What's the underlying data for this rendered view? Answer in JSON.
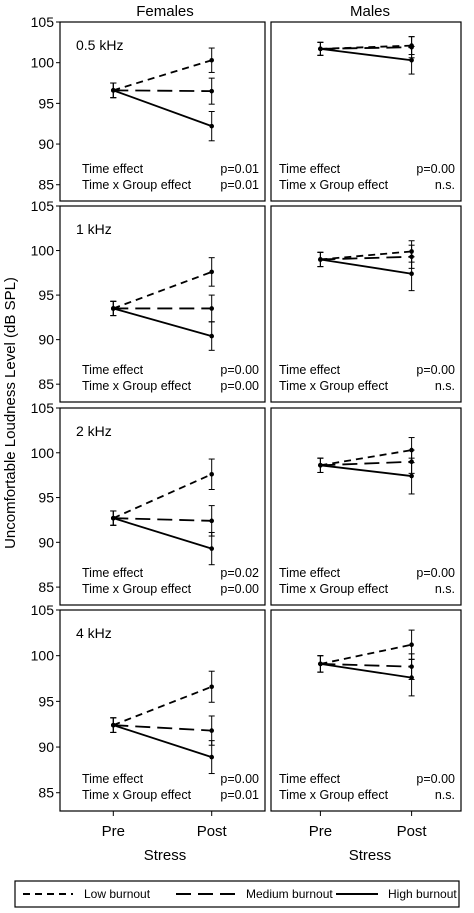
{
  "figure": {
    "ylabel": "Uncomfortable Loudness Level (dB SPL)",
    "xlabel": "Stress",
    "column_titles": [
      "Females",
      "Males"
    ],
    "yticks": [
      85,
      90,
      95,
      100,
      105
    ],
    "xticks": [
      "Pre",
      "Post"
    ],
    "legend": [
      "Low burnout",
      "Medium burnout",
      "High burnout"
    ]
  },
  "chart_data": [
    {
      "type": "line",
      "title": "Females",
      "frequency": "0.5 kHz",
      "categories": [
        "Pre",
        "Post"
      ],
      "ylim": [
        83,
        105
      ],
      "series": [
        {
          "name": "Low burnout",
          "values": [
            96.6,
            100.3
          ],
          "err": [
            0.9,
            1.5
          ]
        },
        {
          "name": "Medium burnout",
          "values": [
            96.6,
            96.5
          ],
          "err": [
            0.9,
            1.6
          ]
        },
        {
          "name": "High burnout",
          "values": [
            96.6,
            92.2
          ],
          "err": [
            0.9,
            1.8
          ]
        }
      ],
      "annotations": [
        {
          "label": "Time effect",
          "value": "p=0.01"
        },
        {
          "label": "Time x Group effect",
          "value": "p=0.01"
        }
      ]
    },
    {
      "type": "line",
      "title": "Males",
      "frequency": "",
      "categories": [
        "Pre",
        "Post"
      ],
      "ylim": [
        83,
        105
      ],
      "series": [
        {
          "name": "Low burnout",
          "values": [
            101.7,
            102.1
          ],
          "err": [
            0.8,
            1.1
          ]
        },
        {
          "name": "Medium burnout",
          "values": [
            101.7,
            101.9
          ],
          "err": [
            0.8,
            1.3
          ]
        },
        {
          "name": "High burnout",
          "values": [
            101.7,
            100.3
          ],
          "err": [
            0.8,
            1.7
          ]
        }
      ],
      "annotations": [
        {
          "label": "Time effect",
          "value": "p=0.00"
        },
        {
          "label": "Time x Group effect",
          "value": "n.s."
        }
      ]
    },
    {
      "type": "line",
      "title": "Females",
      "frequency": "1 kHz",
      "categories": [
        "Pre",
        "Post"
      ],
      "ylim": [
        83,
        105
      ],
      "series": [
        {
          "name": "Low burnout",
          "values": [
            93.5,
            97.6
          ],
          "err": [
            0.8,
            1.6
          ]
        },
        {
          "name": "Medium burnout",
          "values": [
            93.5,
            93.5
          ],
          "err": [
            0.8,
            1.5
          ]
        },
        {
          "name": "High burnout",
          "values": [
            93.5,
            90.4
          ],
          "err": [
            0.8,
            1.6
          ]
        }
      ],
      "annotations": [
        {
          "label": "Time effect",
          "value": "p=0.00"
        },
        {
          "label": "Time x Group effect",
          "value": "p=0.00"
        }
      ]
    },
    {
      "type": "line",
      "title": "Males",
      "frequency": "",
      "categories": [
        "Pre",
        "Post"
      ],
      "ylim": [
        83,
        105
      ],
      "series": [
        {
          "name": "Low burnout",
          "values": [
            99.0,
            99.9
          ],
          "err": [
            0.8,
            1.2
          ]
        },
        {
          "name": "Medium burnout",
          "values": [
            99.0,
            99.3
          ],
          "err": [
            0.8,
            1.3
          ]
        },
        {
          "name": "High burnout",
          "values": [
            99.0,
            97.4
          ],
          "err": [
            0.8,
            1.9
          ]
        }
      ],
      "annotations": [
        {
          "label": "Time effect",
          "value": "p=0.00"
        },
        {
          "label": "Time x Group effect",
          "value": "n.s."
        }
      ]
    },
    {
      "type": "line",
      "title": "Females",
      "frequency": "2 kHz",
      "categories": [
        "Pre",
        "Post"
      ],
      "ylim": [
        83,
        105
      ],
      "series": [
        {
          "name": "Low burnout",
          "values": [
            92.7,
            97.6
          ],
          "err": [
            0.8,
            1.7
          ]
        },
        {
          "name": "Medium burnout",
          "values": [
            92.7,
            92.4
          ],
          "err": [
            0.8,
            1.7
          ]
        },
        {
          "name": "High burnout",
          "values": [
            92.7,
            89.3
          ],
          "err": [
            0.8,
            1.8
          ]
        }
      ],
      "annotations": [
        {
          "label": "Time effect",
          "value": "p=0.02"
        },
        {
          "label": "Time x Group effect",
          "value": "p=0.00"
        }
      ]
    },
    {
      "type": "line",
      "title": "Males",
      "frequency": "",
      "categories": [
        "Pre",
        "Post"
      ],
      "ylim": [
        83,
        105
      ],
      "series": [
        {
          "name": "Low burnout",
          "values": [
            98.6,
            100.3
          ],
          "err": [
            0.8,
            1.4
          ]
        },
        {
          "name": "Medium burnout",
          "values": [
            98.6,
            99.0
          ],
          "err": [
            0.8,
            1.3
          ]
        },
        {
          "name": "High burnout",
          "values": [
            98.6,
            97.4
          ],
          "err": [
            0.8,
            2.0
          ]
        }
      ],
      "annotations": [
        {
          "label": "Time effect",
          "value": "p=0.00"
        },
        {
          "label": "Time x Group effect",
          "value": "n.s."
        }
      ]
    },
    {
      "type": "line",
      "title": "Females",
      "frequency": "4 kHz",
      "categories": [
        "Pre",
        "Post"
      ],
      "ylim": [
        83,
        105
      ],
      "series": [
        {
          "name": "Low burnout",
          "values": [
            92.4,
            96.6
          ],
          "err": [
            0.8,
            1.7
          ]
        },
        {
          "name": "Medium burnout",
          "values": [
            92.4,
            91.8
          ],
          "err": [
            0.8,
            1.6
          ]
        },
        {
          "name": "High burnout",
          "values": [
            92.4,
            88.9
          ],
          "err": [
            0.8,
            1.8
          ]
        }
      ],
      "annotations": [
        {
          "label": "Time effect",
          "value": "p=0.00"
        },
        {
          "label": "Time x Group effect",
          "value": "p=0.01"
        }
      ]
    },
    {
      "type": "line",
      "title": "Males",
      "frequency": "",
      "categories": [
        "Pre",
        "Post"
      ],
      "ylim": [
        83,
        105
      ],
      "series": [
        {
          "name": "Low burnout",
          "values": [
            99.1,
            101.2
          ],
          "err": [
            0.9,
            1.6
          ]
        },
        {
          "name": "Medium burnout",
          "values": [
            99.1,
            98.8
          ],
          "err": [
            0.9,
            1.4
          ]
        },
        {
          "name": "High burnout",
          "values": [
            99.1,
            97.6
          ],
          "err": [
            0.9,
            2.0
          ]
        }
      ],
      "annotations": [
        {
          "label": "Time effect",
          "value": "p=0.00"
        },
        {
          "label": "Time x Group effect",
          "value": "n.s."
        }
      ]
    }
  ]
}
